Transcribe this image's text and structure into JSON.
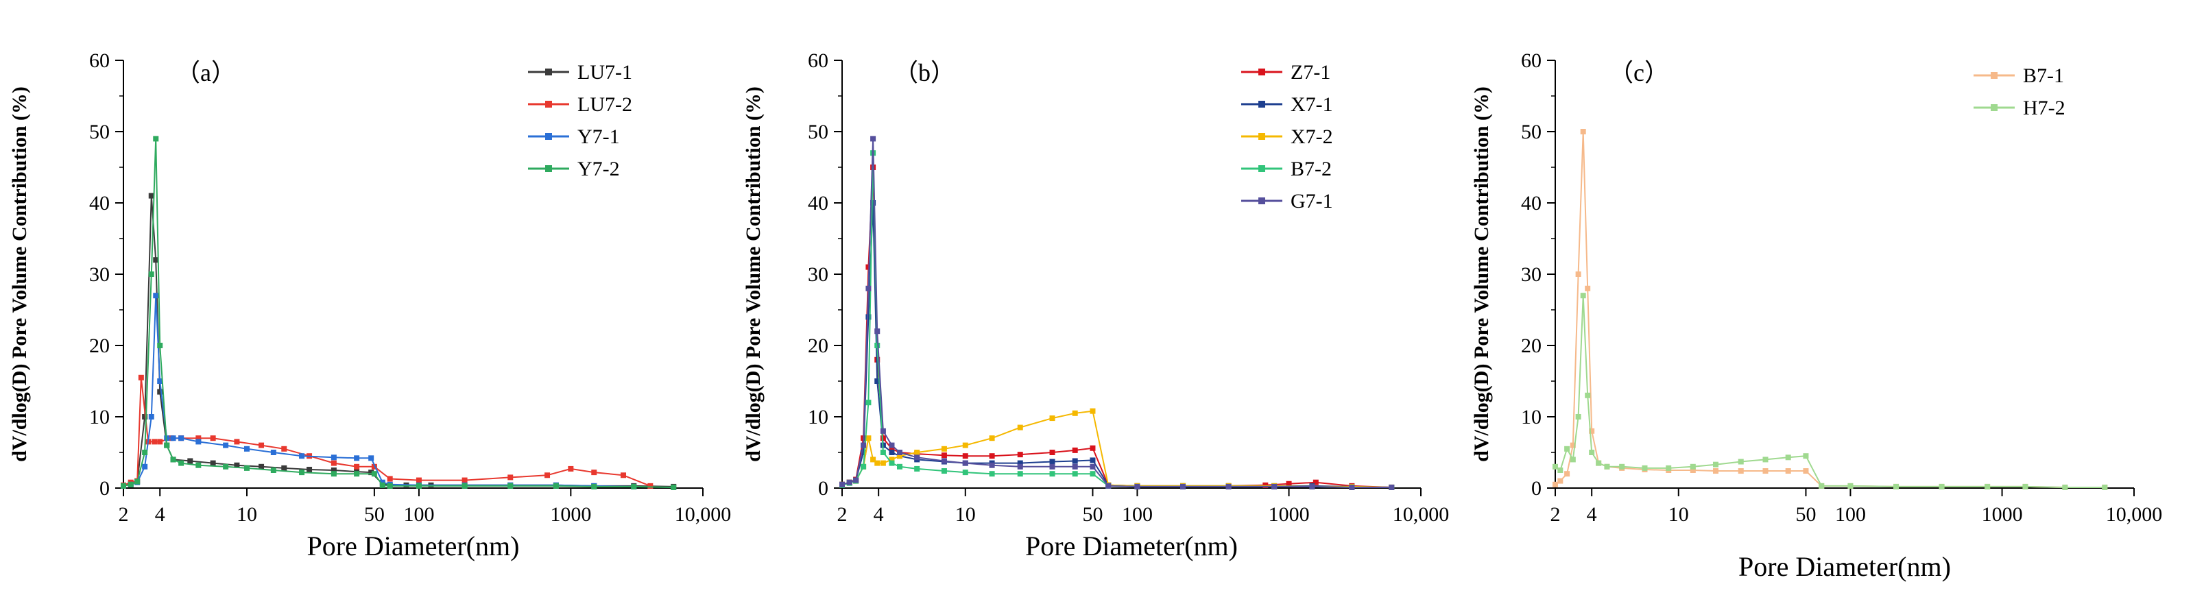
{
  "chart_data": [
    {
      "type": "line",
      "panel_label": "（a）",
      "xlabel": "Pore Diameter(nm)",
      "ylabel": "dV/dlog(D) Pore Volume Contribution (%)",
      "xscale": "custom-log",
      "ylim": [
        0,
        60
      ],
      "y_ticks": [
        "0",
        "10",
        "20",
        "30",
        "40",
        "50",
        "60"
      ],
      "x_ticks": [
        "2",
        "4",
        "10",
        "50",
        "100",
        "1000",
        "10,000"
      ],
      "legend_position": "top-right",
      "series": [
        {
          "name": "LU7-1",
          "color": "#3a3a3a",
          "x": [
            2,
            2.3,
            2.6,
            3,
            3.4,
            3.7,
            4,
            4.3,
            4.6,
            5.5,
            7,
            9,
            12,
            16,
            22,
            30,
            40,
            48,
            55,
            60,
            80,
            120,
            200,
            400,
            800,
            1500,
            3000,
            6000
          ],
          "y": [
            0.3,
            0.6,
            0.9,
            10,
            41,
            32,
            13.5,
            6,
            4,
            3.8,
            3.5,
            3.2,
            3,
            2.8,
            2.6,
            2.5,
            2.3,
            2.2,
            0.6,
            0.4,
            0.4,
            0.4,
            0.4,
            0.4,
            0.4,
            0.3,
            0.3,
            0.2
          ]
        },
        {
          "name": "LU7-2",
          "color": "#e8382e",
          "x": [
            2,
            2.3,
            2.6,
            2.8,
            3.2,
            3.6,
            4,
            4.5,
            5,
            6,
            7,
            9,
            12,
            16,
            22,
            30,
            40,
            50,
            60,
            100,
            200,
            400,
            700,
            1000,
            1500,
            2500,
            4000
          ],
          "y": [
            0.4,
            0.8,
            1,
            15.5,
            6.5,
            6.5,
            6.5,
            7,
            7,
            7,
            7,
            6.5,
            6,
            5.5,
            4.5,
            3.5,
            3,
            3,
            1.3,
            1.1,
            1.1,
            1.5,
            1.8,
            2.7,
            2.2,
            1.8,
            0.3
          ]
        },
        {
          "name": "Y7-1",
          "color": "#2a6fd6",
          "x": [
            2,
            2.3,
            2.6,
            3,
            3.4,
            3.7,
            4,
            4.3,
            4.6,
            5,
            6,
            8,
            10,
            14,
            20,
            30,
            40,
            48,
            55,
            60,
            100,
            200,
            400,
            800,
            1500,
            3000
          ],
          "y": [
            0.3,
            0.5,
            0.8,
            3,
            10,
            27,
            15,
            7,
            7,
            7,
            6.5,
            6,
            5.5,
            5,
            4.5,
            4.3,
            4.2,
            4.2,
            0.8,
            0.5,
            0.4,
            0.4,
            0.4,
            0.4,
            0.3,
            0.2
          ]
        },
        {
          "name": "Y7-2",
          "color": "#2eaa5e",
          "x": [
            2,
            2.3,
            2.6,
            3,
            3.4,
            3.7,
            4,
            4.3,
            4.6,
            5,
            6,
            8,
            10,
            14,
            20,
            30,
            40,
            50,
            55,
            60,
            100,
            200,
            400,
            800,
            1500,
            3000,
            6000
          ],
          "y": [
            0.3,
            0.5,
            0.9,
            5,
            30,
            49,
            20,
            6,
            4,
            3.5,
            3.2,
            3,
            2.8,
            2.5,
            2.2,
            2,
            2,
            2,
            0.4,
            0.3,
            0.3,
            0.3,
            0.3,
            0.3,
            0.2,
            0.2,
            0.1
          ]
        }
      ]
    },
    {
      "type": "line",
      "panel_label": "（b）",
      "xlabel": "Pore Diameter(nm)",
      "ylabel": "dV/dlog(D) Pore Volume Contribution (%)",
      "xscale": "custom-log",
      "ylim": [
        0,
        60
      ],
      "y_ticks": [
        "0",
        "10",
        "20",
        "30",
        "40",
        "50",
        "60"
      ],
      "x_ticks": [
        "2",
        "4",
        "10",
        "50",
        "100",
        "1000",
        "10,000"
      ],
      "legend_position": "top-right",
      "series": [
        {
          "name": "Z7-1",
          "color": "#d9131c",
          "x": [
            2,
            2.3,
            2.6,
            3,
            3.3,
            3.6,
            3.9,
            4.2,
            4.6,
            5,
            6,
            8,
            10,
            14,
            20,
            30,
            40,
            50,
            60,
            100,
            200,
            400,
            700,
            1000,
            1600,
            3000,
            6000
          ],
          "y": [
            0.5,
            0.8,
            1.2,
            7,
            31,
            45,
            18,
            7,
            5.5,
            5,
            4.8,
            4.6,
            4.5,
            4.5,
            4.7,
            5,
            5.3,
            5.6,
            0.4,
            0.3,
            0.3,
            0.3,
            0.4,
            0.6,
            0.8,
            0.3,
            0.1
          ]
        },
        {
          "name": "X7-1",
          "color": "#1e3f8f",
          "x": [
            2,
            2.3,
            2.6,
            3,
            3.3,
            3.6,
            3.9,
            4.2,
            4.6,
            5,
            6,
            8,
            10,
            14,
            20,
            30,
            40,
            50,
            60,
            100,
            200,
            400,
            800,
            1500,
            3000,
            6000
          ],
          "y": [
            0.5,
            0.8,
            1.1,
            5,
            24,
            40,
            15,
            6,
            5,
            4.5,
            4,
            3.7,
            3.5,
            3.5,
            3.5,
            3.7,
            3.8,
            3.9,
            0.4,
            0.3,
            0.3,
            0.3,
            0.3,
            0.3,
            0.2,
            0.1
          ]
        },
        {
          "name": "X7-2",
          "color": "#f5b800",
          "x": [
            2,
            2.3,
            2.6,
            3,
            3.3,
            3.6,
            3.9,
            4.2,
            4.6,
            5,
            6,
            8,
            10,
            14,
            20,
            30,
            40,
            50,
            60,
            100,
            200,
            400,
            800,
            1500,
            3000,
            6000
          ],
          "y": [
            0.5,
            0.8,
            1,
            3,
            7,
            4,
            3.5,
            3.5,
            4,
            4.5,
            5,
            5.5,
            6,
            7,
            8.5,
            9.8,
            10.5,
            10.8,
            0.4,
            0.3,
            0.3,
            0.3,
            0.3,
            0.2,
            0.2,
            0.1
          ]
        },
        {
          "name": "B7-2",
          "color": "#31c47a",
          "x": [
            2,
            2.3,
            2.6,
            3,
            3.3,
            3.6,
            3.9,
            4.2,
            4.6,
            5,
            6,
            8,
            10,
            14,
            20,
            30,
            40,
            50,
            60,
            100,
            200,
            400,
            800,
            1500,
            3000,
            6000
          ],
          "y": [
            0.4,
            0.7,
            1,
            3,
            12,
            47,
            20,
            5,
            3.5,
            3,
            2.7,
            2.4,
            2.2,
            2,
            2,
            2,
            2,
            2,
            0.3,
            0.2,
            0.2,
            0.2,
            0.2,
            0.2,
            0.1,
            0.1
          ]
        },
        {
          "name": "G7-1",
          "color": "#554f9c",
          "x": [
            2,
            2.3,
            2.6,
            3,
            3.3,
            3.6,
            3.9,
            4.2,
            4.6,
            5,
            6,
            8,
            10,
            14,
            20,
            30,
            40,
            50,
            60,
            100,
            200,
            400,
            800,
            1500,
            3000,
            6000
          ],
          "y": [
            0.5,
            0.8,
            1.1,
            6,
            28,
            49,
            22,
            8,
            6,
            5,
            4.3,
            3.8,
            3.5,
            3.2,
            3,
            3,
            3,
            3,
            0.3,
            0.2,
            0.2,
            0.2,
            0.2,
            0.2,
            0.1,
            0.1
          ]
        }
      ]
    },
    {
      "type": "line",
      "panel_label": "（c）",
      "xlabel": "Pore Diameter(nm)",
      "ylabel": "dV/dlog(D) Pore Volume Contribution (%)",
      "xscale": "custom-log",
      "ylim": [
        0,
        60
      ],
      "y_ticks": [
        "0",
        "10",
        "20",
        "30",
        "40",
        "50",
        "60"
      ],
      "x_ticks": [
        "2",
        "4",
        "10",
        "50",
        "100",
        "1000",
        "10,000"
      ],
      "legend_position": "top-right",
      "series": [
        {
          "name": "B7-1",
          "color": "#f6b98a",
          "x": [
            2,
            2.2,
            2.5,
            2.8,
            3.1,
            3.4,
            3.7,
            4,
            4.3,
            4.7,
            5.5,
            7,
            9,
            12,
            16,
            22,
            30,
            40,
            50,
            60,
            100,
            200,
            400,
            800,
            1500,
            3000,
            6000
          ],
          "y": [
            0.5,
            1,
            2,
            6,
            30,
            50,
            28,
            8,
            3.5,
            3,
            2.8,
            2.6,
            2.5,
            2.5,
            2.4,
            2.4,
            2.4,
            2.4,
            2.4,
            0.3,
            0.3,
            0.2,
            0.2,
            0.2,
            0.2,
            0.1,
            0.1
          ]
        },
        {
          "name": "H7-2",
          "color": "#9fd98f",
          "x": [
            2,
            2.2,
            2.5,
            2.8,
            3.1,
            3.4,
            3.7,
            4,
            4.3,
            4.7,
            5.5,
            7,
            9,
            12,
            16,
            22,
            30,
            40,
            50,
            60,
            100,
            200,
            400,
            800,
            1500,
            3000,
            6000
          ],
          "y": [
            3,
            2.5,
            5.5,
            4,
            10,
            27,
            13,
            5,
            3.5,
            3,
            3,
            2.8,
            2.8,
            3,
            3.3,
            3.7,
            4,
            4.3,
            4.5,
            0.3,
            0.3,
            0.2,
            0.2,
            0.2,
            0.2,
            0.1,
            0.1
          ]
        }
      ]
    }
  ]
}
